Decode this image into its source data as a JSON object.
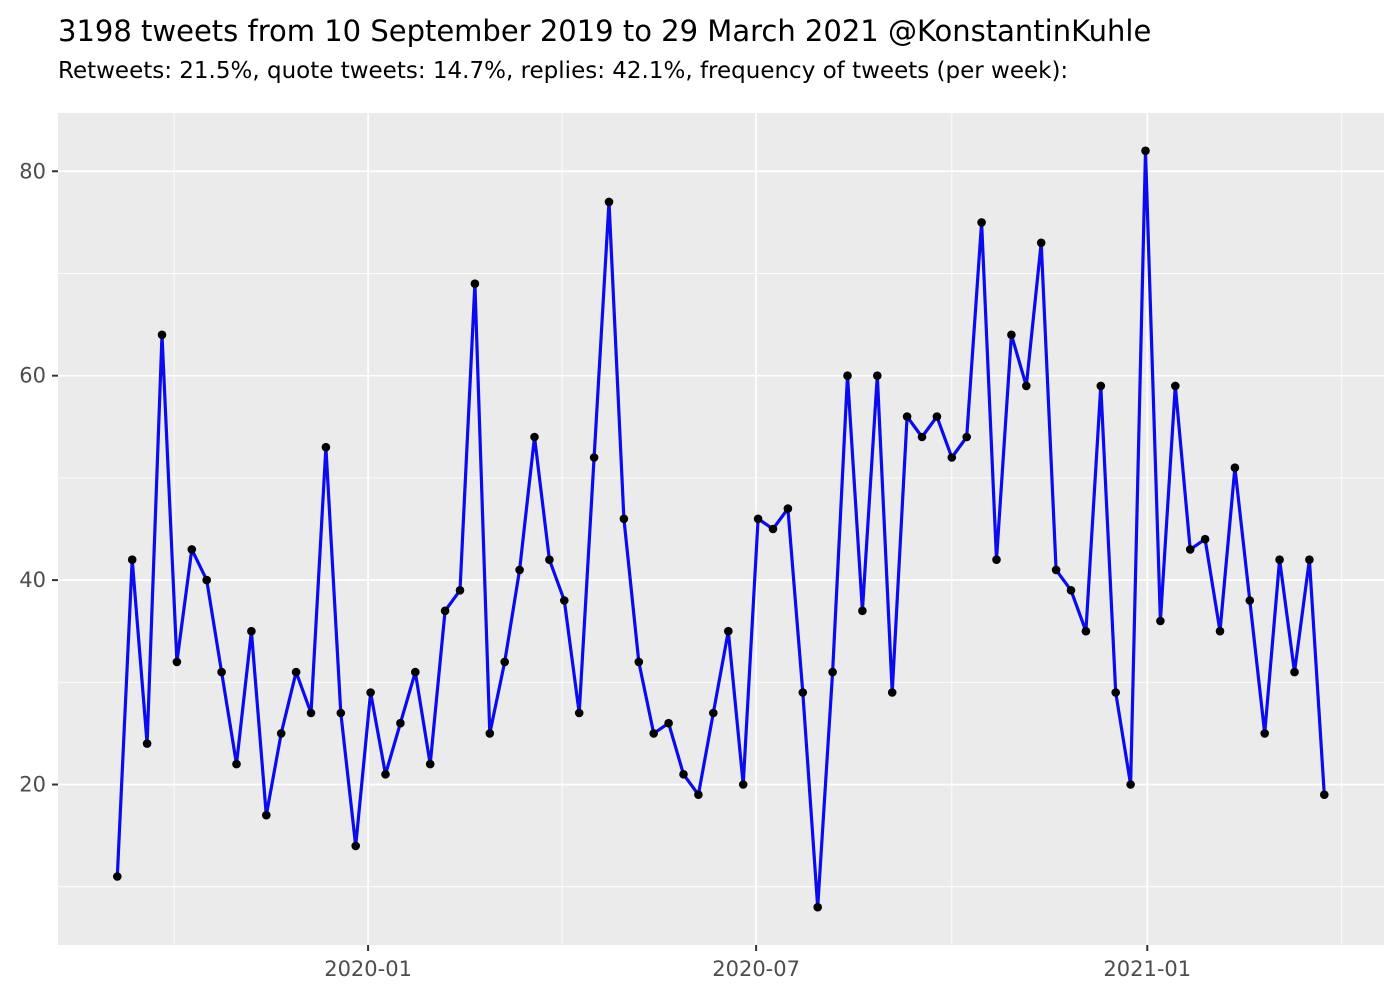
{
  "chart_data": {
    "type": "line",
    "title": "3198 tweets from 10 September 2019 to 29 March 2021 @KonstantinKuhle",
    "subtitle": "Retweets: 21.5%, quote tweets: 14.7%, replies: 42.1%, frequency of tweets (per week):",
    "series": [
      {
        "name": "tweets-per-week",
        "x_unit": "week-index",
        "values": [
          11,
          42,
          24,
          64,
          32,
          43,
          40,
          31,
          22,
          35,
          17,
          25,
          31,
          27,
          53,
          27,
          14,
          29,
          21,
          26,
          31,
          22,
          37,
          39,
          69,
          25,
          32,
          41,
          54,
          42,
          38,
          27,
          52,
          77,
          46,
          32,
          25,
          26,
          21,
          19,
          27,
          35,
          20,
          46,
          45,
          47,
          29,
          8,
          31,
          60,
          37,
          60,
          29,
          56,
          54,
          56,
          52,
          54,
          75,
          42,
          64,
          59,
          73,
          41,
          39,
          35,
          59,
          29,
          20,
          82,
          36,
          59,
          43,
          44,
          35,
          51,
          38,
          25,
          42,
          31,
          42,
          19
        ]
      }
    ],
    "x_range_weeks": [
      0,
      81
    ],
    "x_ticks": [
      {
        "label": "2020-01",
        "week": 16.83
      },
      {
        "label": "2020-07",
        "week": 42.87
      },
      {
        "label": "2021-01",
        "week": 69.12
      }
    ],
    "x_minor_weeks": [
      3.81,
      29.85,
      56.0,
      82.17
    ],
    "y_major_ticks": [
      20,
      40,
      60,
      80
    ],
    "y_minor_ticks": [
      10,
      30,
      50,
      70
    ],
    "ylim": [
      4.3,
      85.7
    ],
    "grid": "on",
    "legend": "none",
    "xlabel": "",
    "ylabel": "",
    "colors": {
      "line": "#0b0bf0",
      "point": "#000000",
      "panel_background": "#ebebeb",
      "grid_major": "#ffffff",
      "grid_minor": "#ffffff",
      "tick_text": "#4d4d4d",
      "tick_mark": "#333333",
      "title_text": "#000000"
    }
  }
}
